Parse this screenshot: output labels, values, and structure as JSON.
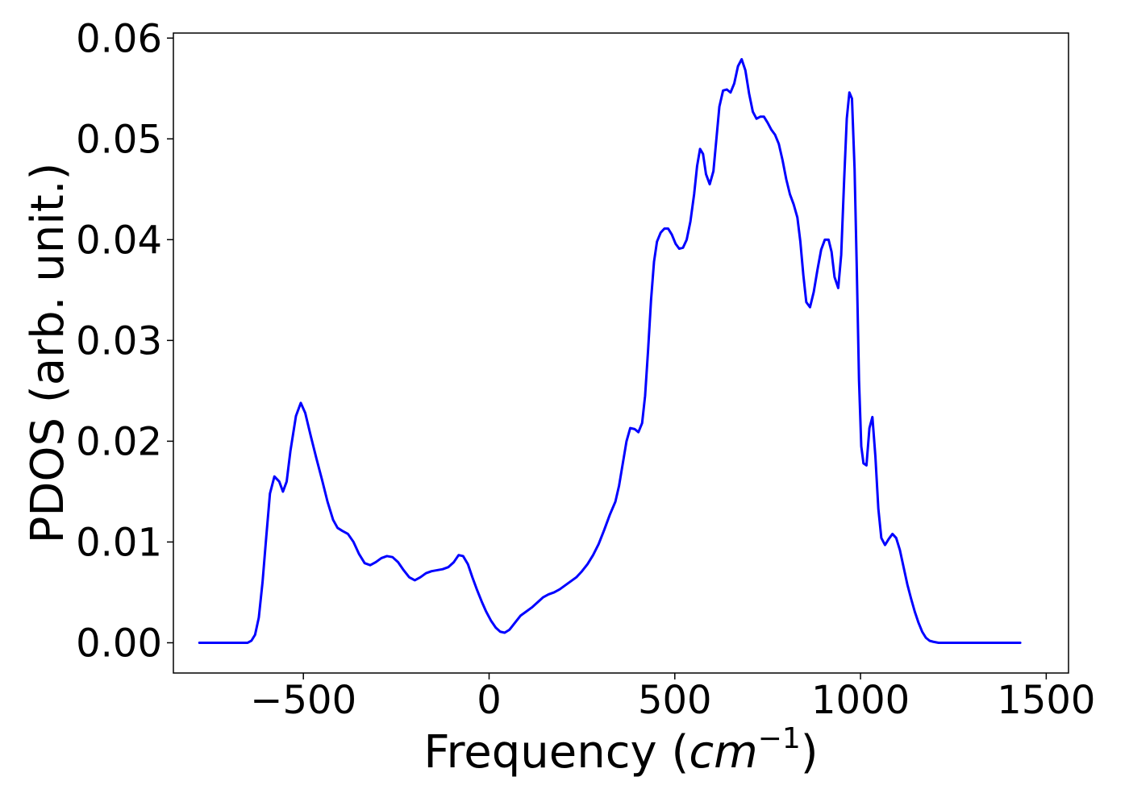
{
  "chart_data": {
    "type": "line",
    "title": "",
    "xlabel": "Frequency (",
    "xlabel_italic": "cm",
    "xlabel_sup": "−1",
    "xlabel_close": ")",
    "ylabel": "PDOS (arb. unit.)",
    "xlim": [
      -850,
      1560
    ],
    "ylim": [
      -0.003,
      0.0605
    ],
    "xticks": [
      -500,
      0,
      500,
      1000,
      1500
    ],
    "xtick_labels": [
      "−500",
      "0",
      "500",
      "1000",
      "1500"
    ],
    "yticks": [
      0.0,
      0.01,
      0.02,
      0.03,
      0.04,
      0.05,
      0.06
    ],
    "ytick_labels": [
      "0.00",
      "0.01",
      "0.02",
      "0.03",
      "0.04",
      "0.05",
      "0.06"
    ],
    "grid": false,
    "legend": false,
    "series": [
      {
        "color": "#0000ff",
        "points": [
          [
            -780,
            0.0
          ],
          [
            -700,
            0.0
          ],
          [
            -650,
            0.0
          ],
          [
            -640,
            0.0002
          ],
          [
            -630,
            0.0008
          ],
          [
            -620,
            0.0025
          ],
          [
            -610,
            0.006
          ],
          [
            -600,
            0.0105
          ],
          [
            -590,
            0.0148
          ],
          [
            -578,
            0.0165
          ],
          [
            -565,
            0.016
          ],
          [
            -555,
            0.015
          ],
          [
            -545,
            0.016
          ],
          [
            -535,
            0.019
          ],
          [
            -520,
            0.0225
          ],
          [
            -507,
            0.0238
          ],
          [
            -495,
            0.0228
          ],
          [
            -480,
            0.0205
          ],
          [
            -465,
            0.0183
          ],
          [
            -450,
            0.0162
          ],
          [
            -435,
            0.014
          ],
          [
            -420,
            0.0122
          ],
          [
            -408,
            0.0114
          ],
          [
            -395,
            0.0111
          ],
          [
            -380,
            0.0108
          ],
          [
            -365,
            0.01
          ],
          [
            -350,
            0.0088
          ],
          [
            -335,
            0.0079
          ],
          [
            -320,
            0.0077
          ],
          [
            -305,
            0.008
          ],
          [
            -290,
            0.0084
          ],
          [
            -275,
            0.0086
          ],
          [
            -260,
            0.0085
          ],
          [
            -245,
            0.008
          ],
          [
            -230,
            0.0072
          ],
          [
            -215,
            0.0065
          ],
          [
            -200,
            0.0062
          ],
          [
            -185,
            0.0065
          ],
          [
            -170,
            0.0069
          ],
          [
            -155,
            0.0071
          ],
          [
            -140,
            0.0072
          ],
          [
            -125,
            0.0073
          ],
          [
            -110,
            0.0075
          ],
          [
            -95,
            0.008
          ],
          [
            -82,
            0.0087
          ],
          [
            -70,
            0.0086
          ],
          [
            -57,
            0.0078
          ],
          [
            -45,
            0.0065
          ],
          [
            -32,
            0.0052
          ],
          [
            -20,
            0.0041
          ],
          [
            -8,
            0.0031
          ],
          [
            5,
            0.0022
          ],
          [
            18,
            0.0015
          ],
          [
            30,
            0.0011
          ],
          [
            42,
            0.001
          ],
          [
            55,
            0.0013
          ],
          [
            70,
            0.002
          ],
          [
            85,
            0.0027
          ],
          [
            100,
            0.0031
          ],
          [
            115,
            0.0035
          ],
          [
            130,
            0.004
          ],
          [
            145,
            0.0045
          ],
          [
            160,
            0.0048
          ],
          [
            175,
            0.005
          ],
          [
            190,
            0.0053
          ],
          [
            205,
            0.0057
          ],
          [
            220,
            0.0061
          ],
          [
            235,
            0.0065
          ],
          [
            250,
            0.0071
          ],
          [
            265,
            0.0078
          ],
          [
            280,
            0.0087
          ],
          [
            295,
            0.0098
          ],
          [
            310,
            0.0112
          ],
          [
            325,
            0.0127
          ],
          [
            340,
            0.014
          ],
          [
            350,
            0.0156
          ],
          [
            360,
            0.0178
          ],
          [
            370,
            0.02
          ],
          [
            380,
            0.0213
          ],
          [
            392,
            0.0212
          ],
          [
            402,
            0.0209
          ],
          [
            412,
            0.0218
          ],
          [
            420,
            0.0245
          ],
          [
            428,
            0.029
          ],
          [
            436,
            0.034
          ],
          [
            444,
            0.0378
          ],
          [
            452,
            0.0398
          ],
          [
            462,
            0.0407
          ],
          [
            472,
            0.0411
          ],
          [
            482,
            0.0411
          ],
          [
            492,
            0.0405
          ],
          [
            502,
            0.0396
          ],
          [
            512,
            0.0391
          ],
          [
            522,
            0.0392
          ],
          [
            532,
            0.04
          ],
          [
            542,
            0.0418
          ],
          [
            552,
            0.0445
          ],
          [
            560,
            0.0473
          ],
          [
            568,
            0.049
          ],
          [
            576,
            0.0485
          ],
          [
            584,
            0.0465
          ],
          [
            594,
            0.0455
          ],
          [
            604,
            0.0468
          ],
          [
            612,
            0.05
          ],
          [
            620,
            0.0532
          ],
          [
            630,
            0.0548
          ],
          [
            640,
            0.0549
          ],
          [
            650,
            0.0546
          ],
          [
            660,
            0.0555
          ],
          [
            670,
            0.0572
          ],
          [
            680,
            0.0579
          ],
          [
            690,
            0.0568
          ],
          [
            700,
            0.0545
          ],
          [
            710,
            0.0527
          ],
          [
            720,
            0.052
          ],
          [
            730,
            0.0522
          ],
          [
            740,
            0.0522
          ],
          [
            750,
            0.0516
          ],
          [
            760,
            0.0509
          ],
          [
            770,
            0.0504
          ],
          [
            780,
            0.0495
          ],
          [
            790,
            0.0479
          ],
          [
            800,
            0.046
          ],
          [
            810,
            0.0445
          ],
          [
            820,
            0.0435
          ],
          [
            830,
            0.0422
          ],
          [
            838,
            0.0398
          ],
          [
            846,
            0.0365
          ],
          [
            854,
            0.0338
          ],
          [
            864,
            0.0333
          ],
          [
            874,
            0.0348
          ],
          [
            884,
            0.037
          ],
          [
            894,
            0.039
          ],
          [
            904,
            0.04
          ],
          [
            914,
            0.04
          ],
          [
            922,
            0.0388
          ],
          [
            930,
            0.0363
          ],
          [
            940,
            0.0352
          ],
          [
            948,
            0.0385
          ],
          [
            956,
            0.046
          ],
          [
            963,
            0.052
          ],
          [
            970,
            0.0546
          ],
          [
            977,
            0.054
          ],
          [
            984,
            0.047
          ],
          [
            990,
            0.037
          ],
          [
            996,
            0.026
          ],
          [
            1002,
            0.0195
          ],
          [
            1008,
            0.0178
          ],
          [
            1016,
            0.0176
          ],
          [
            1024,
            0.0213
          ],
          [
            1032,
            0.0224
          ],
          [
            1040,
            0.0185
          ],
          [
            1048,
            0.0133
          ],
          [
            1056,
            0.0104
          ],
          [
            1066,
            0.0097
          ],
          [
            1076,
            0.0103
          ],
          [
            1086,
            0.0108
          ],
          [
            1096,
            0.0104
          ],
          [
            1106,
            0.0092
          ],
          [
            1116,
            0.0075
          ],
          [
            1126,
            0.0058
          ],
          [
            1136,
            0.0044
          ],
          [
            1146,
            0.0031
          ],
          [
            1156,
            0.002
          ],
          [
            1166,
            0.0011
          ],
          [
            1176,
            0.0005
          ],
          [
            1186,
            0.0002
          ],
          [
            1196,
            0.0001
          ],
          [
            1210,
            0.0
          ],
          [
            1300,
            0.0
          ],
          [
            1430,
            0.0
          ]
        ]
      }
    ]
  }
}
